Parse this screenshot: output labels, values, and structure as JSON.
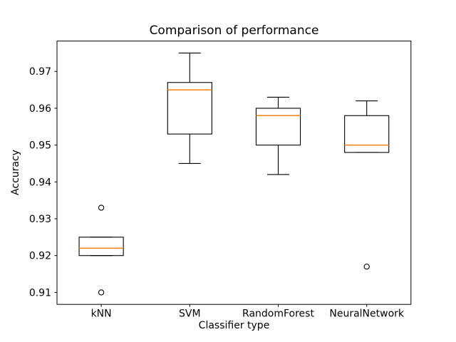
{
  "figure": {
    "background_color": "#ffffff"
  },
  "chart_data": {
    "type": "boxplot",
    "title": "Comparison of performance",
    "xlabel": "Classifier type",
    "ylabel": "Accuracy",
    "categories": [
      "kNN",
      "SVM",
      "RandomForest",
      "NeuralNetwork"
    ],
    "series": [
      {
        "name": "kNN",
        "whisker_low": 0.92,
        "q1": 0.92,
        "median": 0.922,
        "q3": 0.925,
        "whisker_high": 0.925,
        "outliers": [
          0.933,
          0.91
        ]
      },
      {
        "name": "SVM",
        "whisker_low": 0.945,
        "q1": 0.953,
        "median": 0.965,
        "q3": 0.967,
        "whisker_high": 0.975,
        "outliers": []
      },
      {
        "name": "RandomForest",
        "whisker_low": 0.942,
        "q1": 0.95,
        "median": 0.958,
        "q3": 0.96,
        "whisker_high": 0.963,
        "outliers": []
      },
      {
        "name": "NeuralNetwork",
        "whisker_low": 0.948,
        "q1": 0.948,
        "median": 0.95,
        "q3": 0.958,
        "whisker_high": 0.962,
        "outliers": [
          0.917
        ]
      }
    ],
    "y_ticks": [
      0.91,
      0.92,
      0.93,
      0.94,
      0.95,
      0.96,
      0.97
    ],
    "y_tick_labels": [
      "0.91",
      "0.92",
      "0.93",
      "0.94",
      "0.95",
      "0.96",
      "0.97"
    ],
    "ylim": [
      0.90675,
      0.97825
    ],
    "grid": false,
    "legend": null,
    "colors": {
      "box": "#000000",
      "median": "#ff7f0e",
      "whisker": "#000000",
      "cap": "#000000",
      "flier": "#000000",
      "spine": "#000000",
      "text": "#000000",
      "background": "#ffffff"
    }
  }
}
